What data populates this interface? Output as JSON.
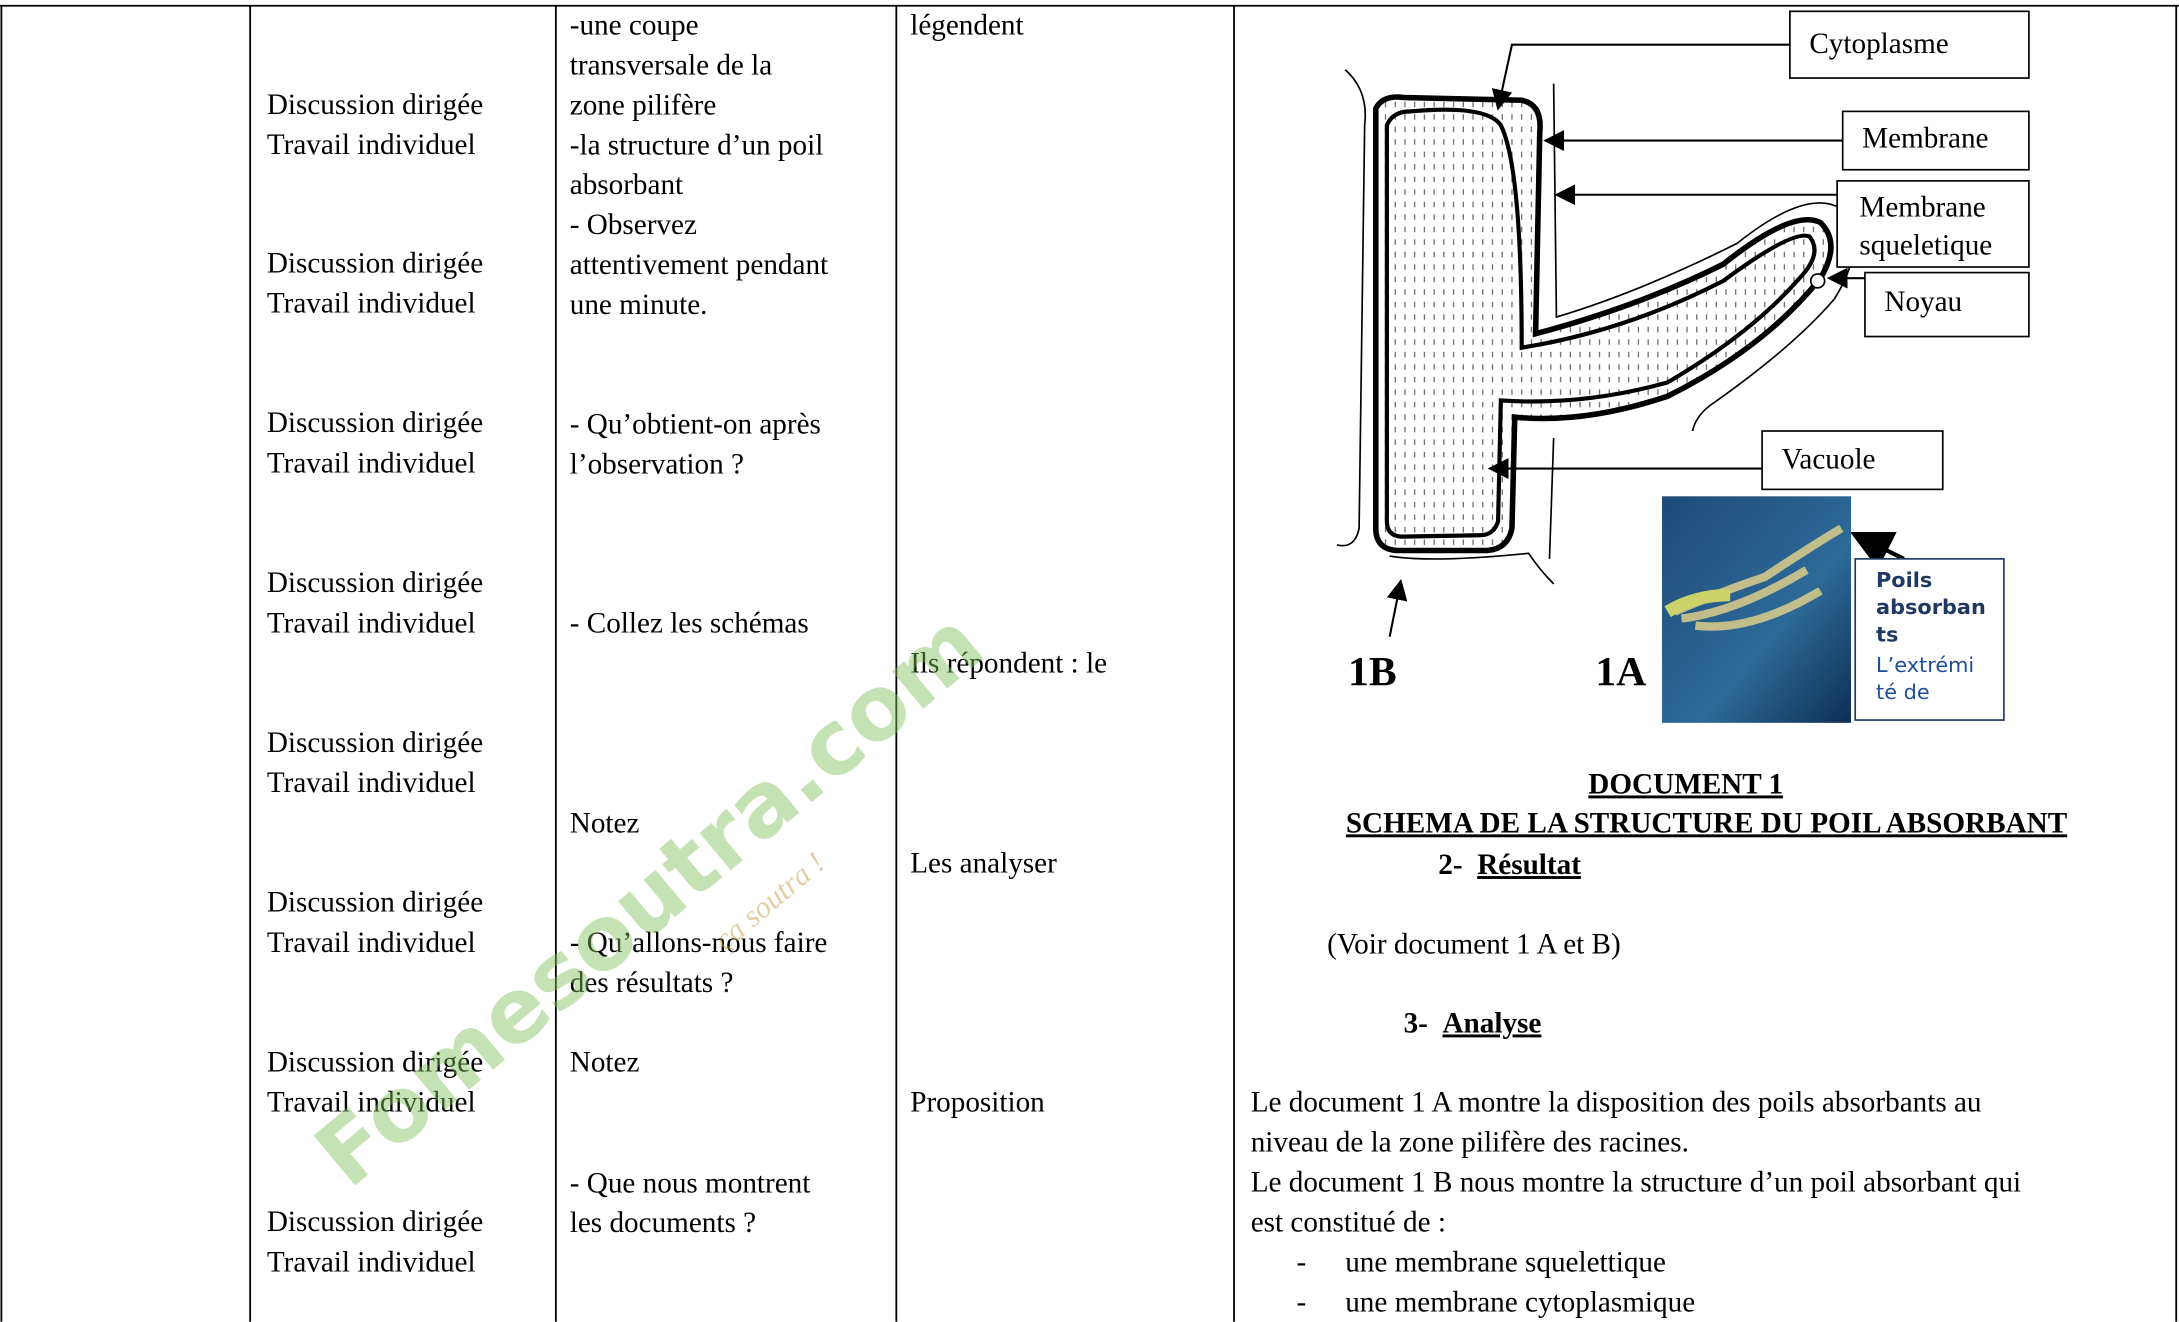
{
  "table": {
    "methods": [
      [
        "Discussion dirigée",
        "Travail individuel"
      ],
      [
        "Discussion dirigée",
        "Travail individuel"
      ],
      [
        "Discussion dirigée",
        "Travail individuel"
      ],
      [
        "Discussion dirigée",
        "Travail individuel"
      ],
      [
        "Discussion dirigée",
        "Travail individuel"
      ],
      [
        "Discussion dirigée",
        "Travail individuel"
      ],
      [
        "Discussion dirigée",
        "Travail individuel"
      ],
      [
        "Discussion dirigée",
        "Travail individuel"
      ]
    ],
    "instructions": [
      [
        "-une coupe",
        "transversale de la",
        "zone pilifère",
        "-la structure d’un poil",
        "absorbant",
        "- Observez",
        "attentivement pendant",
        "une minute."
      ],
      [
        "- Qu’obtient-on après",
        "l’observation ?"
      ],
      [
        "- Collez les schémas"
      ],
      [
        "Notez"
      ],
      [
        "- Qu’allons-nous faire",
        "des résultats ?"
      ],
      [
        "Notez"
      ],
      [
        "- Que nous montrent",
        "les documents ?"
      ]
    ],
    "responses": [
      "légendent",
      "Ils répondent : le",
      "Les analyser",
      "Proposition"
    ]
  },
  "document": {
    "labels": {
      "cytoplasm": "Cytoplasme",
      "membrane": "Membrane",
      "skeletal_membrane": [
        "Membrane",
        "squeletique"
      ],
      "nucleus": "Noyau",
      "vacuole": "Vacuole"
    },
    "photo_caption": {
      "bold": [
        "Poils",
        "absorban",
        "ts"
      ],
      "normal": [
        "L’extrémi",
        "té de"
      ]
    },
    "label_1b": "1B",
    "label_1a": "1A",
    "title": "DOCUMENT 1",
    "subtitle": "SCHEMA DE LA STRUCTURE DU POIL ABSORBANT",
    "result_heading": {
      "number": "2-",
      "text": "Résultat"
    },
    "result_text": "(Voir document 1 A et B)",
    "analysis_heading": {
      "number": "3-",
      "text": "Analyse"
    },
    "analysis_lines": [
      "Le document 1 A montre la disposition des poils absorbants au",
      "niveau de la zone pilifère des racines.",
      "Le document 1 B nous montre la structure d’un poil absorbant qui",
      "est constitué de :"
    ],
    "list_items": [
      "une membrane squelettique",
      "une membrane cytoplasmique"
    ]
  },
  "watermark": {
    "text": "Fomesoutra.com",
    "tagline": "ça soutra !"
  }
}
